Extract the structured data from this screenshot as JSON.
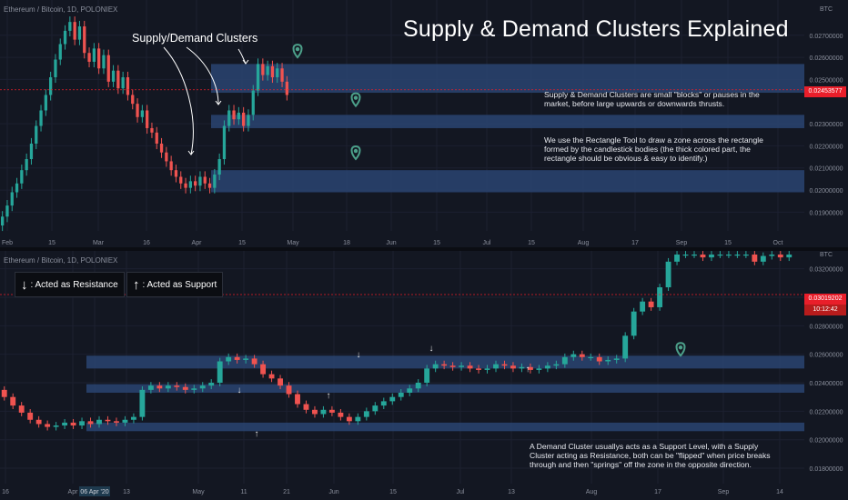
{
  "title": "Supply & Demand Clusters Explained",
  "colors": {
    "background": "#131722",
    "zone": "#2a4471",
    "up": "#26a69a",
    "down": "#ef5350",
    "pin": "#4ca08a",
    "label_red": "#e91e2a"
  },
  "top_chart": {
    "symbol": "Ethereum / Bitcoin, 1D, POLONIEX",
    "currency": "BTC",
    "price_labels": [
      "0.02700000",
      "0.02600000",
      "0.02500000",
      "0.02300000",
      "0.02200000",
      "0.02100000",
      "0.02000000",
      "0.01900000"
    ],
    "last_price": "0.02453577",
    "x_labels": [
      "Feb",
      "15",
      "Mar",
      "16",
      "Apr",
      "15",
      "May",
      "18",
      "Jun",
      "15",
      "Jul",
      "15",
      "Aug",
      "17",
      "Sep",
      "15",
      "Oct"
    ],
    "cluster_label": "Supply/Demand Clusters",
    "note_1": "Supply & Demand Clusters are small \"blocks\" or pauses in the market, before large upwards or downwards thrusts.",
    "note_2": "We use the Rectangle Tool to draw a zone across the rectangle formed by the candlestick bodies (the thick colored part, the rectangle should be obvious & easy to identify.)"
  },
  "bottom_chart": {
    "symbol": "Ethereum / Bitcoin, 1D, POLONIEX",
    "currency": "BTC",
    "price_labels": [
      "0.03200000",
      "0.03000000",
      "0.02800000",
      "0.02600000",
      "0.02400000",
      "0.02200000",
      "0.02000000",
      "0.01800000"
    ],
    "last_price": "0.03019202",
    "countdown": "10:12:42",
    "x_labels": [
      "16",
      "Apr",
      "06 Apr '20",
      "13",
      "May",
      "11",
      "21",
      "Jun",
      "15",
      "Jul",
      "13",
      "Aug",
      "17",
      "Sep",
      "14"
    ],
    "legend_resistance": ": Acted as Resistance",
    "legend_support": ": Acted as Support",
    "note": "A Demand Cluster usuallys acts as a Support Level, with a Supply Cluster acting as Resistance, both can be \"flipped\" when price breaks through and then \"springs\" off the zone in the opposite direction."
  },
  "chart_data": [
    {
      "type": "candlestick",
      "title": "Ethereum / Bitcoin, 1D, POLONIEX",
      "xlabel": "",
      "ylabel": "BTC",
      "ylim": [
        0.0184,
        0.0281
      ],
      "zones": [
        [
          0.0244,
          0.0257
        ],
        [
          0.0228,
          0.0234
        ],
        [
          0.0199,
          0.0209
        ]
      ],
      "last": 0.02453577,
      "closes": [
        0.0188,
        0.0193,
        0.0199,
        0.0203,
        0.0209,
        0.0214,
        0.0221,
        0.0229,
        0.0236,
        0.0243,
        0.0251,
        0.0259,
        0.0266,
        0.0272,
        0.0276,
        0.0268,
        0.0274,
        0.0262,
        0.0258,
        0.0264,
        0.0255,
        0.0261,
        0.0249,
        0.0254,
        0.0246,
        0.0251,
        0.0243,
        0.0239,
        0.0233,
        0.0236,
        0.0228,
        0.0226,
        0.0221,
        0.0217,
        0.0213,
        0.0209,
        0.0206,
        0.0203,
        0.0201,
        0.0204,
        0.0202,
        0.0206,
        0.0203,
        0.0201,
        0.0207,
        0.0214,
        0.0229,
        0.0236,
        0.0232,
        0.0235,
        0.0229,
        0.0234,
        0.0245,
        0.0257,
        0.0252,
        0.0256,
        0.0251,
        0.0255,
        0.0249,
        0.0243
      ],
      "opens": [
        0.0184,
        0.0188,
        0.0193,
        0.0199,
        0.0203,
        0.0209,
        0.0214,
        0.0221,
        0.0229,
        0.0236,
        0.0243,
        0.0251,
        0.0259,
        0.0266,
        0.0272,
        0.0276,
        0.0268,
        0.0274,
        0.0262,
        0.0258,
        0.0264,
        0.0255,
        0.0261,
        0.0249,
        0.0254,
        0.0246,
        0.0251,
        0.0243,
        0.0239,
        0.0233,
        0.0236,
        0.0228,
        0.0226,
        0.0221,
        0.0217,
        0.0213,
        0.0209,
        0.0206,
        0.0203,
        0.0201,
        0.0204,
        0.0202,
        0.0206,
        0.0203,
        0.0201,
        0.0207,
        0.0214,
        0.0229,
        0.0236,
        0.0232,
        0.0235,
        0.0229,
        0.0234,
        0.0245,
        0.0257,
        0.0252,
        0.0256,
        0.0251,
        0.0255,
        0.0249
      ]
    },
    {
      "type": "candlestick",
      "title": "Ethereum / Bitcoin, 1D, POLONIEX",
      "xlabel": "",
      "ylabel": "BTC",
      "ylim": [
        0.0173,
        0.033
      ],
      "zones": [
        [
          0.025,
          0.0259
        ],
        [
          0.0233,
          0.0239
        ],
        [
          0.0206,
          0.0212
        ]
      ],
      "last": 0.03019202,
      "closes": [
        0.023,
        0.0224,
        0.0219,
        0.0214,
        0.0211,
        0.0209,
        0.021,
        0.0212,
        0.021,
        0.0213,
        0.0211,
        0.0214,
        0.0213,
        0.0212,
        0.0214,
        0.0216,
        0.0235,
        0.0238,
        0.0236,
        0.0238,
        0.0237,
        0.0235,
        0.0236,
        0.0238,
        0.024,
        0.0255,
        0.0258,
        0.0256,
        0.0257,
        0.0253,
        0.0246,
        0.0243,
        0.0238,
        0.0232,
        0.0225,
        0.0221,
        0.0218,
        0.0221,
        0.0219,
        0.0216,
        0.0213,
        0.0216,
        0.022,
        0.0224,
        0.0227,
        0.023,
        0.0233,
        0.0236,
        0.024,
        0.025,
        0.0253,
        0.0252,
        0.0251,
        0.0252,
        0.025,
        0.0249,
        0.025,
        0.0253,
        0.0252,
        0.025,
        0.0251,
        0.0249,
        0.025,
        0.0252,
        0.0253,
        0.0258,
        0.026,
        0.0258,
        0.0258,
        0.0255,
        0.0256,
        0.0257,
        0.0273,
        0.029,
        0.0297,
        0.0293,
        0.0307,
        0.0325,
        0.033,
        0.033,
        0.033,
        0.0328,
        0.033,
        0.033,
        0.033,
        0.033,
        0.033,
        0.0325,
        0.0329,
        0.033,
        0.0328,
        0.033
      ],
      "opens": [
        0.0235,
        0.023,
        0.0224,
        0.0219,
        0.0214,
        0.0211,
        0.0209,
        0.021,
        0.0212,
        0.021,
        0.0213,
        0.0211,
        0.0214,
        0.0213,
        0.0212,
        0.0214,
        0.0216,
        0.0235,
        0.0238,
        0.0236,
        0.0238,
        0.0237,
        0.0235,
        0.0236,
        0.0238,
        0.024,
        0.0255,
        0.0258,
        0.0256,
        0.0257,
        0.0253,
        0.0246,
        0.0243,
        0.0238,
        0.0232,
        0.0225,
        0.0221,
        0.0218,
        0.0221,
        0.0219,
        0.0216,
        0.0213,
        0.0216,
        0.022,
        0.0224,
        0.0227,
        0.023,
        0.0233,
        0.0236,
        0.024,
        0.025,
        0.0253,
        0.0252,
        0.0251,
        0.0252,
        0.025,
        0.0249,
        0.025,
        0.0253,
        0.0252,
        0.025,
        0.0251,
        0.0249,
        0.025,
        0.0252,
        0.0253,
        0.0258,
        0.026,
        0.0258,
        0.0258,
        0.0255,
        0.0256,
        0.0257,
        0.0273,
        0.029,
        0.0297,
        0.0293,
        0.0307,
        0.0325,
        0.033,
        0.033,
        0.033,
        0.0328,
        0.033,
        0.033,
        0.033,
        0.033,
        0.033,
        0.0325,
        0.0329,
        0.033,
        0.0328
      ]
    }
  ]
}
